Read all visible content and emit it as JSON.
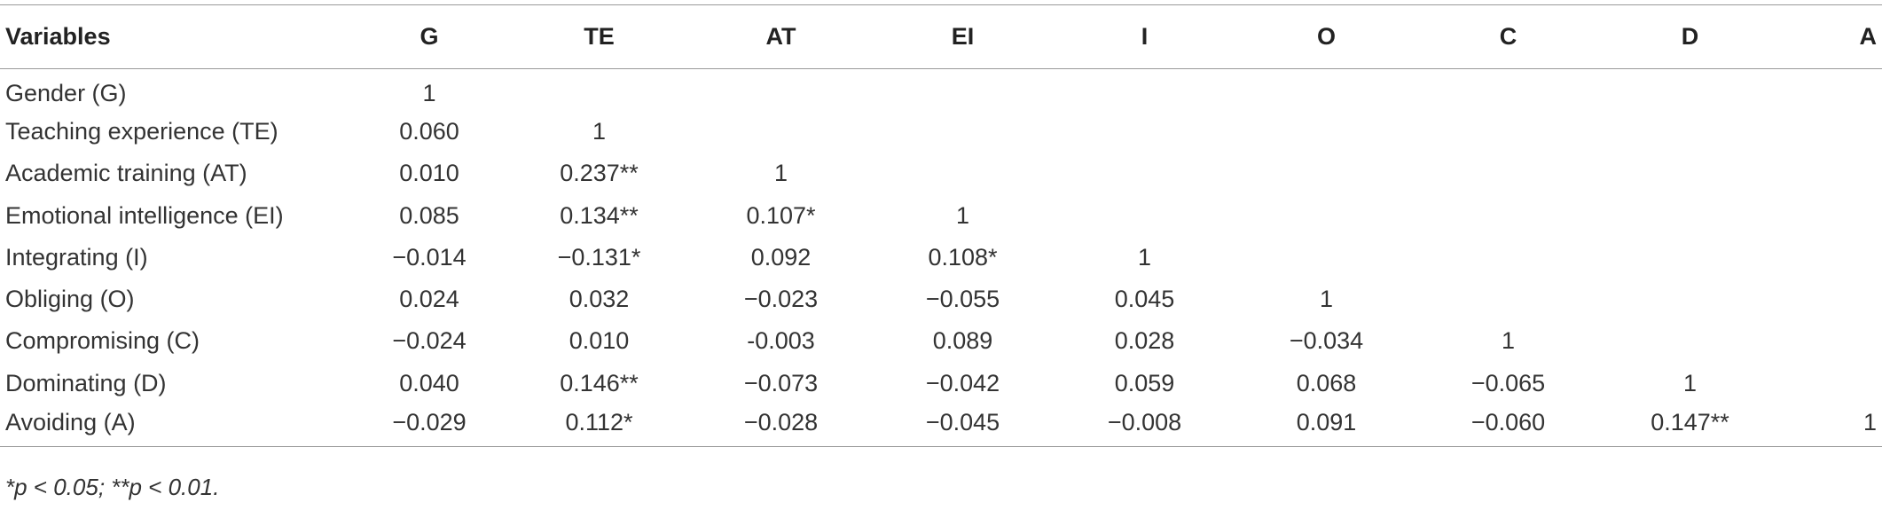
{
  "table": {
    "headers": [
      "Variables",
      "G",
      "TE",
      "AT",
      "EI",
      "I",
      "O",
      "C",
      "D",
      "A"
    ],
    "rows": [
      [
        "Gender (G)",
        "1",
        "",
        "",
        "",
        "",
        "",
        "",
        "",
        ""
      ],
      [
        "Teaching experience (TE)",
        "0.060",
        "1",
        "",
        "",
        "",
        "",
        "",
        "",
        ""
      ],
      [
        "Academic training (AT)",
        "0.010",
        "0.237**",
        "1",
        "",
        "",
        "",
        "",
        "",
        ""
      ],
      [
        "Emotional intelligence (EI)",
        "0.085",
        "0.134**",
        "0.107*",
        "1",
        "",
        "",
        "",
        "",
        ""
      ],
      [
        "Integrating (I)",
        "−0.014",
        "−0.131*",
        "0.092",
        "0.108*",
        "1",
        "",
        "",
        "",
        ""
      ],
      [
        "Obliging (O)",
        "0.024",
        "0.032",
        "−0.023",
        "−0.055",
        "0.045",
        "1",
        "",
        "",
        ""
      ],
      [
        "Compromising (C)",
        "−0.024",
        "0.010",
        "-0.003",
        "0.089",
        "0.028",
        "−0.034",
        "1",
        "",
        ""
      ],
      [
        "Dominating (D)",
        "0.040",
        "0.146**",
        "−0.073",
        "−0.042",
        "0.059",
        "0.068",
        "−0.065",
        "1",
        ""
      ],
      [
        "Avoiding (A)",
        "−0.029",
        "0.112*",
        "−0.028",
        "−0.045",
        "−0.008",
        "0.091",
        "−0.060",
        "0.147**",
        "1"
      ]
    ]
  },
  "footnote": "*p < 0.05; **p < 0.01."
}
